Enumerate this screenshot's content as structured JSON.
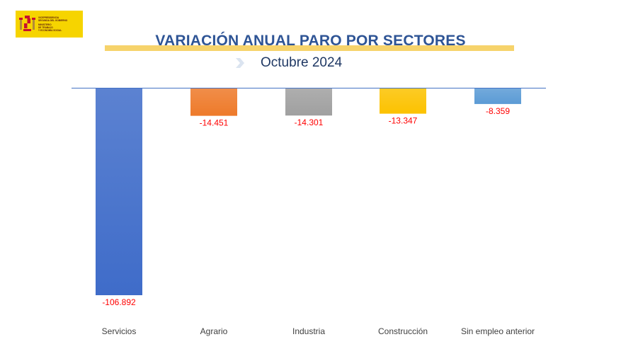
{
  "logo": {
    "lines": [
      "VICEPRESIDENCIA",
      "SEGUNDA DEL GOBIERNO",
      "MINISTERIO",
      "DE TRABAJO",
      "Y ECONOMÍA SOCIAL"
    ]
  },
  "colors": {
    "title": "#2e5495",
    "accent_bar": "#f6d36b",
    "value_labels": "#ff0000",
    "baseline": "#4472c4"
  },
  "chart_data": {
    "type": "bar",
    "title": "VARIACIÓN ANUAL PARO POR SECTORES",
    "subtitle": "Octubre 2024",
    "categories": [
      "Servicios",
      "Agrario",
      "Industria",
      "Construcción",
      "Sin empleo anterior"
    ],
    "values": [
      -106892,
      -14451,
      -14301,
      -13347,
      -8359
    ],
    "value_labels": [
      "-106.892",
      "-14.451",
      "-14.301",
      "-13.347",
      "-8.359"
    ],
    "bar_colors": [
      "#3f6cc9",
      "#ee7a2a",
      "#a0a0a0",
      "#fcc200",
      "#5b9bd5"
    ],
    "ylim": [
      -106892,
      0
    ],
    "grid": false,
    "legend": "none"
  }
}
